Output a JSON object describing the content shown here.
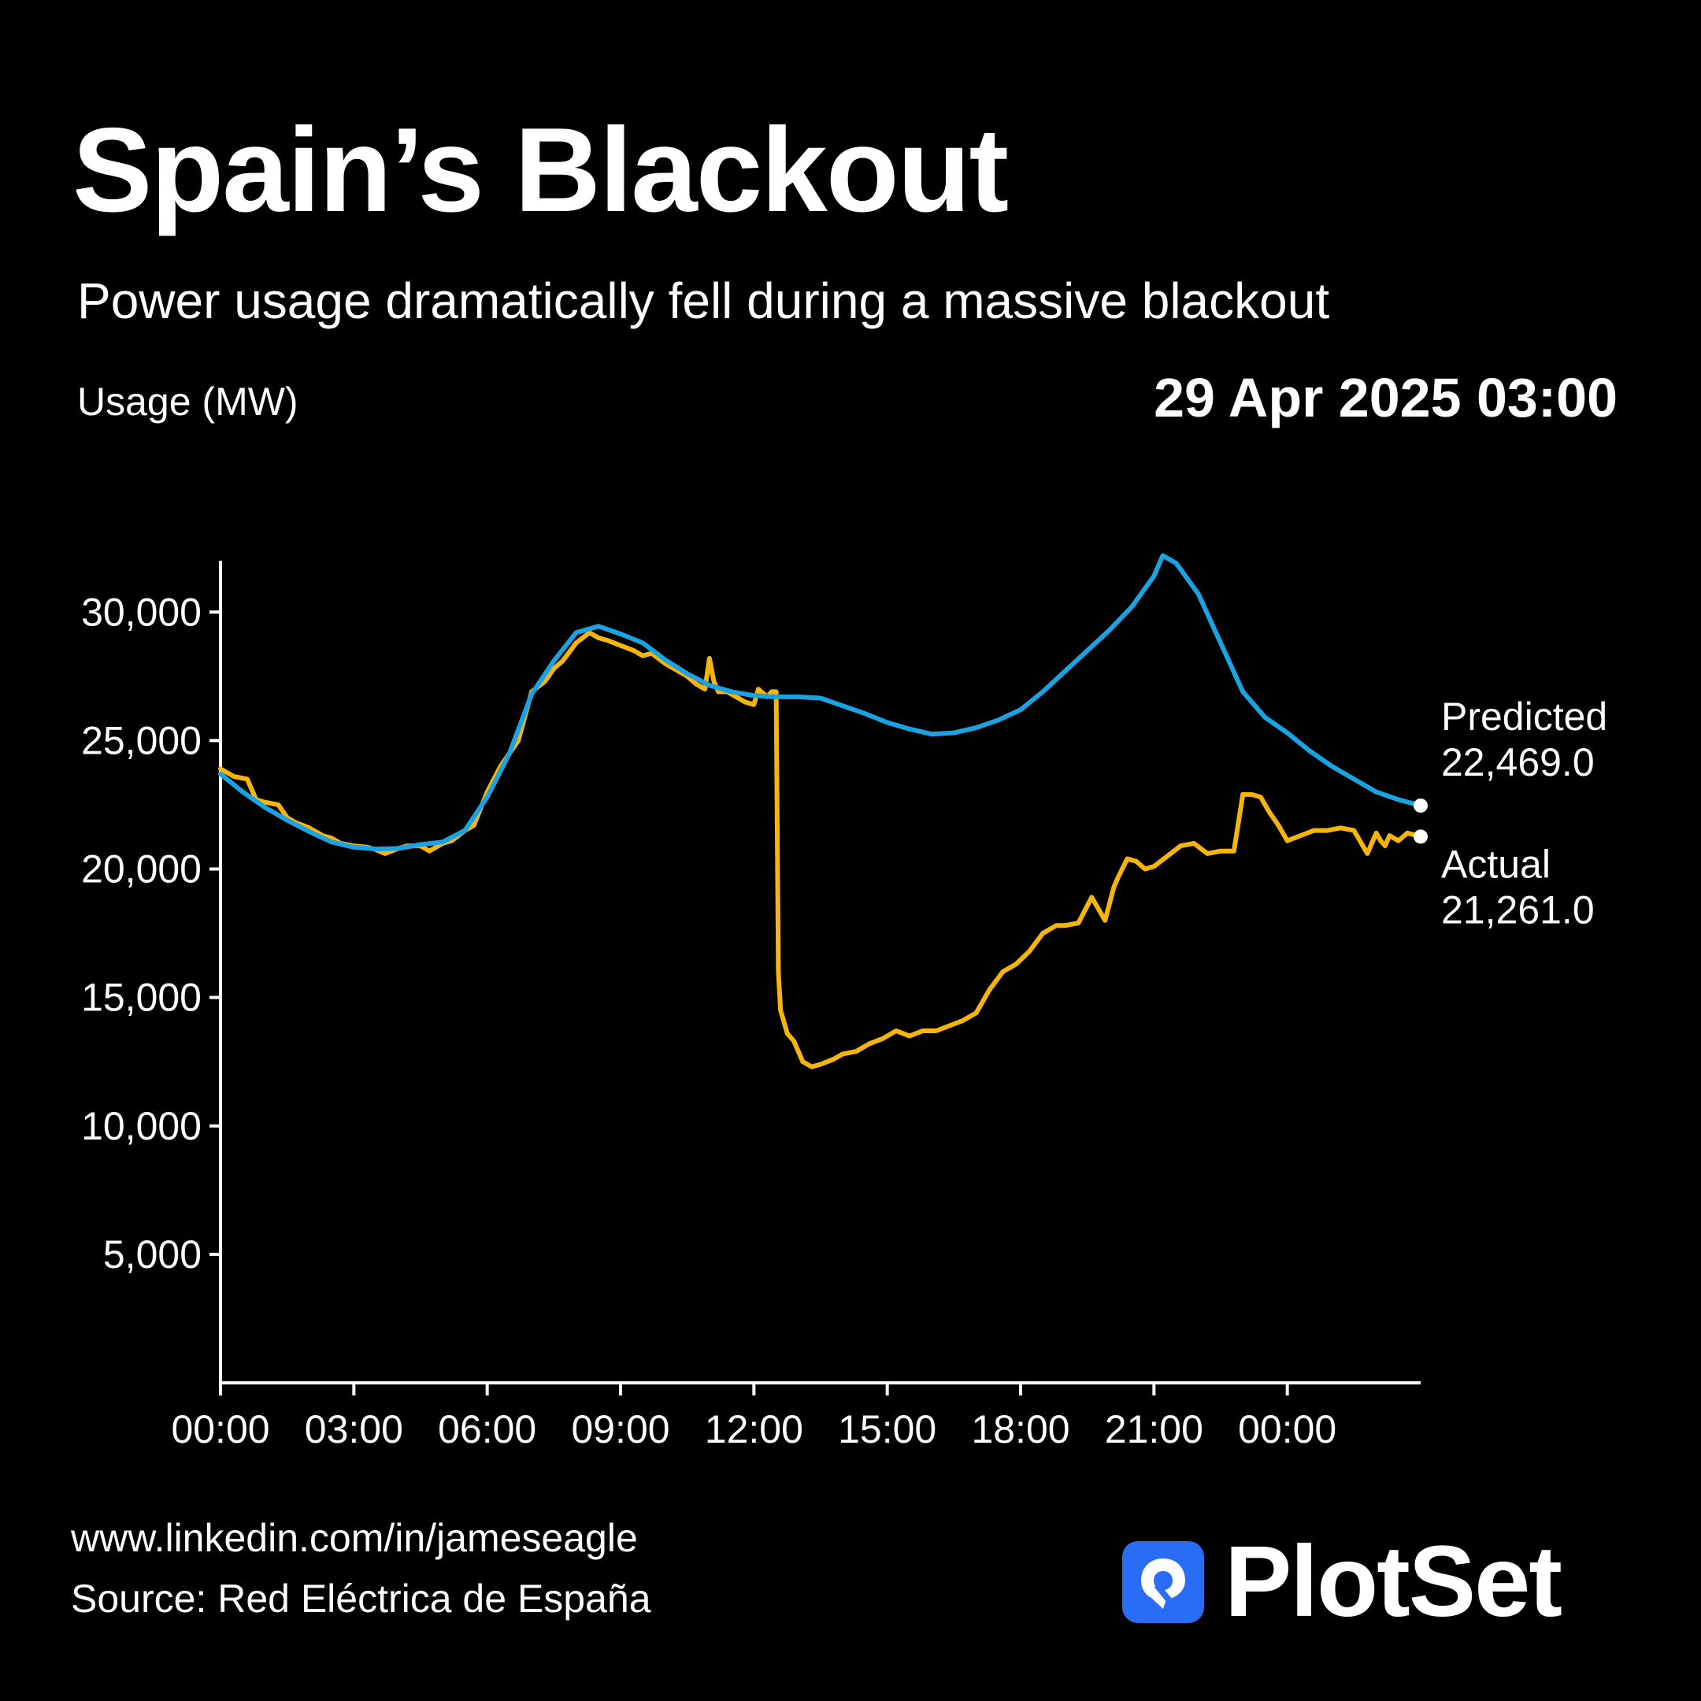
{
  "header": {
    "title": "Spain’s Blackout",
    "subtitle": "Power usage dramatically fell during a massive blackout",
    "timestamp": "29 Apr 2025 03:00"
  },
  "footer": {
    "url": "www.linkedin.com/in/jameseagle",
    "source": "Source: Red Eléctrica de España",
    "brand": "PlotSet"
  },
  "colors": {
    "background": "#000000",
    "predicted": "#1aa3e0",
    "actual": "#f5b50d",
    "axis": "#ffffff",
    "brand_icon": "#2a6df5"
  },
  "chart_data": {
    "type": "line",
    "xlabel": "",
    "ylabel": "Usage (MW)",
    "x_unit": "hours since 28 Apr 2025 00:00",
    "xlim": [
      0,
      27
    ],
    "ylim": [
      0,
      32000
    ],
    "y_ticks": [
      5000,
      10000,
      15000,
      20000,
      25000,
      30000
    ],
    "y_tick_labels": [
      "5,000",
      "10,000",
      "15,000",
      "20,000",
      "25,000",
      "30,000"
    ],
    "x_ticks": [
      0,
      3,
      6,
      9,
      12,
      15,
      18,
      21,
      24
    ],
    "x_tick_labels": [
      "00:00",
      "03:00",
      "06:00",
      "09:00",
      "12:00",
      "15:00",
      "18:00",
      "21:00",
      "00:00"
    ],
    "grid": false,
    "series": [
      {
        "name": "Predicted",
        "end_value_label": "22,469.0",
        "x": [
          0,
          0.5,
          1,
          1.5,
          2,
          2.5,
          3,
          3.5,
          4,
          4.5,
          5,
          5.5,
          6,
          6.5,
          7,
          7.5,
          8,
          8.5,
          9,
          9.5,
          10,
          10.5,
          11,
          11.5,
          12,
          12.5,
          13,
          13.5,
          14,
          14.5,
          15,
          15.5,
          16,
          16.5,
          17,
          17.5,
          18,
          18.5,
          19,
          19.5,
          20,
          20.5,
          21,
          21.2,
          21.5,
          22,
          22.5,
          23,
          23.5,
          24,
          24.5,
          25,
          25.5,
          26,
          26.5,
          27
        ],
        "values": [
          23700,
          23000,
          22400,
          21900,
          21450,
          21050,
          20850,
          20780,
          20800,
          20950,
          21050,
          21500,
          22800,
          24500,
          26800,
          28100,
          29200,
          29450,
          29150,
          28800,
          28150,
          27600,
          27150,
          26900,
          26750,
          26700,
          26700,
          26650,
          26350,
          26050,
          25700,
          25450,
          25250,
          25300,
          25500,
          25800,
          26200,
          26900,
          27700,
          28500,
          29300,
          30200,
          31400,
          32200,
          31900,
          30700,
          28800,
          26900,
          25900,
          25300,
          24600,
          24000,
          23500,
          23000,
          22700,
          22469
        ]
      },
      {
        "name": "Actual",
        "end_value_label": "21,261.0",
        "x": [
          0,
          0.3,
          0.6,
          0.8,
          1,
          1.3,
          1.5,
          1.7,
          2,
          2.3,
          2.5,
          2.7,
          3,
          3.3,
          3.5,
          3.7,
          4,
          4.2,
          4.5,
          4.7,
          5,
          5.2,
          5.5,
          5.7,
          6,
          6.3,
          6.5,
          6.7,
          7,
          7.3,
          7.5,
          7.7,
          8,
          8.3,
          8.5,
          8.7,
          9,
          9.3,
          9.5,
          9.7,
          10,
          10.3,
          10.5,
          10.7,
          10.9,
          11,
          11.1,
          11.2,
          11.4,
          11.6,
          11.8,
          12,
          12.1,
          12.3,
          12.4,
          12.5,
          12.55,
          12.6,
          12.75,
          12.9,
          13.1,
          13.3,
          13.5,
          13.8,
          14,
          14.3,
          14.6,
          14.9,
          15.2,
          15.5,
          15.8,
          16.1,
          16.4,
          16.7,
          17,
          17.3,
          17.6,
          17.9,
          18.2,
          18.5,
          18.8,
          19,
          19.3,
          19.6,
          19.9,
          20.1,
          20.2,
          20.4,
          20.6,
          20.8,
          21,
          21.3,
          21.6,
          21.9,
          22.2,
          22.5,
          22.8,
          23,
          23.2,
          23.4,
          23.6,
          23.8,
          24,
          24.3,
          24.6,
          24.9,
          25.2,
          25.5,
          25.8,
          26,
          26.1,
          26.2,
          26.3,
          26.5,
          26.7,
          27
        ],
        "values": [
          23900,
          23600,
          23500,
          22700,
          22600,
          22500,
          22000,
          21800,
          21600,
          21300,
          21200,
          21000,
          20900,
          20850,
          20750,
          20600,
          20800,
          20900,
          20900,
          20700,
          21000,
          21100,
          21500,
          21700,
          23000,
          24000,
          24500,
          25000,
          26900,
          27300,
          27800,
          28100,
          28800,
          29200,
          29000,
          28900,
          28700,
          28500,
          28300,
          28400,
          28000,
          27700,
          27500,
          27200,
          27000,
          28200,
          27300,
          26900,
          26900,
          26700,
          26500,
          26400,
          27000,
          26700,
          26900,
          26900,
          16000,
          14500,
          13600,
          13300,
          12500,
          12300,
          12400,
          12600,
          12800,
          12900,
          13200,
          13400,
          13700,
          13500,
          13700,
          13700,
          13900,
          14100,
          14400,
          15300,
          16000,
          16300,
          16800,
          17500,
          17800,
          17800,
          17900,
          18900,
          18000,
          19300,
          19700,
          20400,
          20300,
          20000,
          20100,
          20500,
          20900,
          21000,
          20600,
          20700,
          20700,
          22900,
          22900,
          22800,
          22200,
          21700,
          21100,
          21300,
          21500,
          21500,
          21600,
          21500,
          20600,
          21400,
          21100,
          20900,
          21300,
          21100,
          21400,
          21261
        ]
      }
    ]
  }
}
